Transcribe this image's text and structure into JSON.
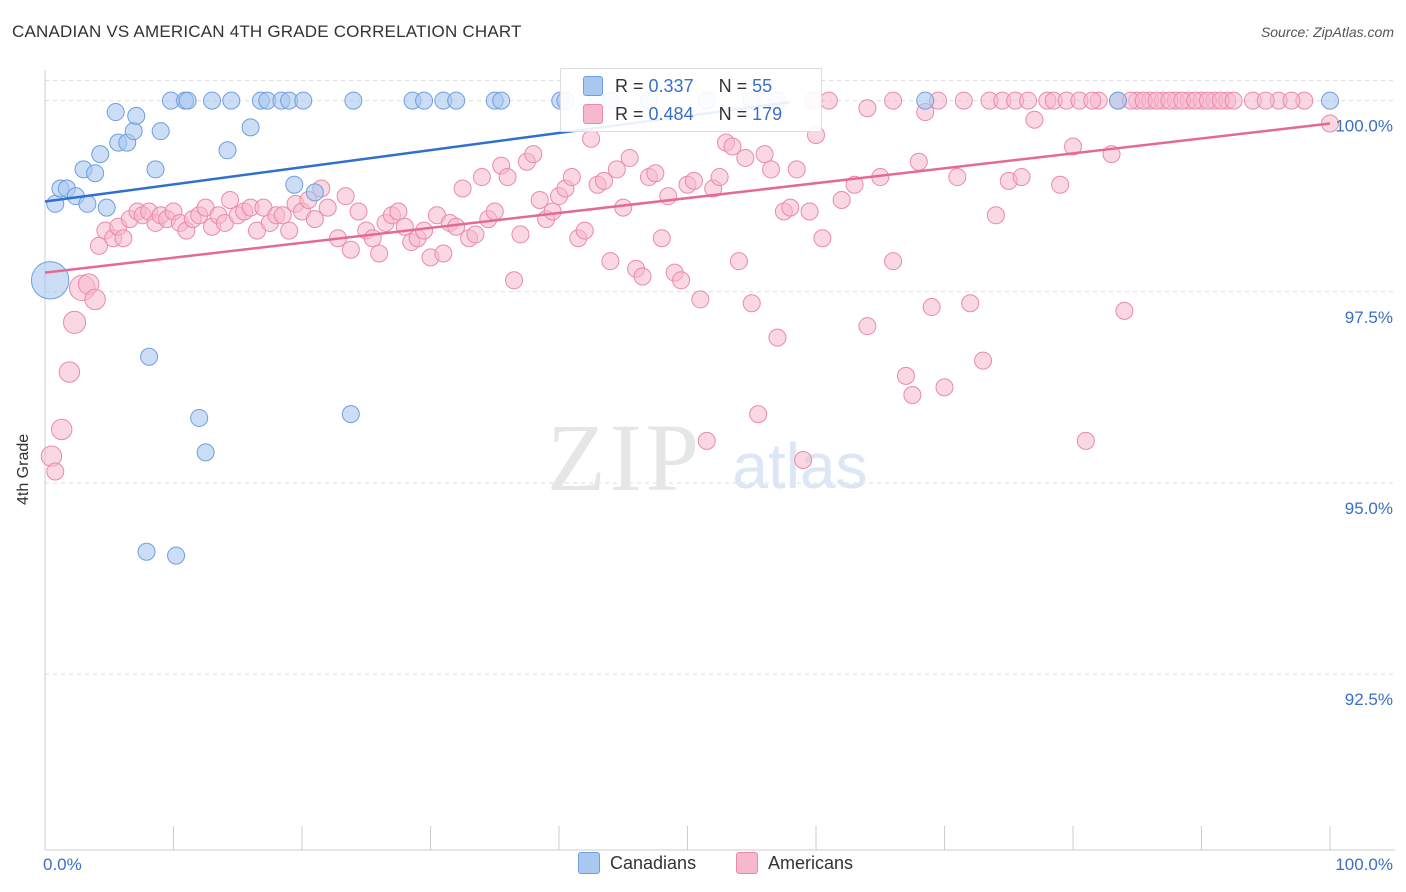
{
  "title": "CANADIAN VS AMERICAN 4TH GRADE CORRELATION CHART",
  "source": "Source: ZipAtlas.com",
  "watermark": {
    "zip": "ZIP",
    "atlas": "atlas"
  },
  "colors": {
    "canadians_fill": "#a9c8f0",
    "canadians_stroke": "#6f9ee0",
    "canadians_line": "#2f6fd0",
    "americans_fill": "#f6b8cc",
    "americans_stroke": "#ea8aa8",
    "americans_line": "#e36a95",
    "tick_label": "#3a6fc6",
    "grid": "#dddddd"
  },
  "stats": [
    {
      "series": "Canadians",
      "r_label": "R =",
      "r": "0.337",
      "n_label": "N =",
      "n": "55"
    },
    {
      "series": "Americans",
      "r_label": "R =",
      "r": "0.484",
      "n_label": "N =",
      "n": "179"
    }
  ],
  "chart_data": {
    "type": "scatter",
    "title": "CANADIAN VS AMERICAN 4TH GRADE CORRELATION CHART",
    "xlabel": "",
    "ylabel": "4th Grade",
    "xlim": [
      0,
      100
    ],
    "ylim": [
      90.2,
      100.4
    ],
    "x_tick_labels": [
      "0.0%",
      "100.0%"
    ],
    "y_ticks": [
      92.5,
      95.0,
      97.5,
      100.0
    ],
    "y_tick_labels": [
      "92.5%",
      "95.0%",
      "97.5%",
      "100.0%"
    ],
    "grid": true,
    "legend": "bottom-center",
    "series": [
      {
        "name": "Canadians",
        "trend": {
          "x": [
            0,
            58
          ],
          "y": [
            98.68,
            99.98
          ]
        },
        "points": [
          [
            0.4,
            97.65,
            2.2
          ],
          [
            0.8,
            98.65,
            1
          ],
          [
            1.2,
            98.85,
            1
          ],
          [
            1.7,
            98.85,
            1
          ],
          [
            2.4,
            98.75,
            1
          ],
          [
            3.0,
            99.1,
            1
          ],
          [
            3.3,
            98.65,
            1
          ],
          [
            3.9,
            99.05,
            1
          ],
          [
            4.3,
            99.3,
            1
          ],
          [
            4.8,
            98.6,
            1
          ],
          [
            5.5,
            99.85,
            1
          ],
          [
            5.7,
            99.45,
            1
          ],
          [
            6.4,
            99.45,
            1
          ],
          [
            6.9,
            99.6,
            1
          ],
          [
            7.1,
            99.8,
            1
          ],
          [
            8.1,
            96.65,
            1
          ],
          [
            7.9,
            94.1,
            1
          ],
          [
            8.6,
            99.1,
            1
          ],
          [
            9.0,
            99.6,
            1
          ],
          [
            9.8,
            100.0,
            1
          ],
          [
            10.2,
            94.05,
            1
          ],
          [
            10.9,
            100.0,
            1
          ],
          [
            11.1,
            100.0,
            1
          ],
          [
            12.0,
            95.85,
            1
          ],
          [
            12.5,
            95.4,
            1
          ],
          [
            13.0,
            100.0,
            1
          ],
          [
            14.2,
            99.35,
            1
          ],
          [
            14.5,
            100.0,
            1
          ],
          [
            16.0,
            99.65,
            1
          ],
          [
            16.8,
            100.0,
            1
          ],
          [
            17.3,
            100.0,
            1
          ],
          [
            18.4,
            100.0,
            1
          ],
          [
            19.0,
            100.0,
            1
          ],
          [
            19.4,
            98.9,
            1
          ],
          [
            20.1,
            100.0,
            1
          ],
          [
            21.0,
            98.8,
            1
          ],
          [
            23.8,
            95.9,
            1
          ],
          [
            24.0,
            100.0,
            1
          ],
          [
            28.6,
            100.0,
            1
          ],
          [
            29.5,
            100.0,
            1
          ],
          [
            31.0,
            100.0,
            1
          ],
          [
            32.0,
            100.0,
            1
          ],
          [
            35.0,
            100.0,
            1
          ],
          [
            35.5,
            100.0,
            1
          ],
          [
            40.1,
            100.0,
            1
          ],
          [
            40.5,
            100.0,
            1
          ],
          [
            43.0,
            100.0,
            1
          ],
          [
            44.0,
            100.0,
            1
          ],
          [
            47.0,
            100.0,
            1
          ],
          [
            51.5,
            100.0,
            1
          ],
          [
            55.0,
            100.0,
            1
          ],
          [
            57.0,
            100.0,
            1
          ],
          [
            68.5,
            100.0,
            1
          ],
          [
            83.5,
            100.0,
            1
          ],
          [
            100.0,
            100.0,
            1
          ]
        ]
      },
      {
        "name": "Americans",
        "trend": {
          "x": [
            0,
            100
          ],
          "y": [
            97.75,
            99.7
          ]
        },
        "points": [
          [
            0.5,
            95.35,
            1.2
          ],
          [
            0.8,
            95.15,
            1
          ],
          [
            1.3,
            95.7,
            1.2
          ],
          [
            1.9,
            96.45,
            1.2
          ],
          [
            2.3,
            97.1,
            1.3
          ],
          [
            2.9,
            97.55,
            1.5
          ],
          [
            3.4,
            97.6,
            1.2
          ],
          [
            3.9,
            97.4,
            1.2
          ],
          [
            4.2,
            98.1,
            1
          ],
          [
            4.7,
            98.3,
            1
          ],
          [
            5.3,
            98.2,
            1
          ],
          [
            5.7,
            98.35,
            1
          ],
          [
            6.1,
            98.2,
            1
          ],
          [
            6.6,
            98.45,
            1
          ],
          [
            7.2,
            98.55,
            1
          ],
          [
            7.6,
            98.5,
            1
          ],
          [
            8.1,
            98.55,
            1
          ],
          [
            8.6,
            98.4,
            1
          ],
          [
            9.0,
            98.5,
            1
          ],
          [
            9.5,
            98.45,
            1
          ],
          [
            10.0,
            98.55,
            1
          ],
          [
            10.5,
            98.4,
            1
          ],
          [
            11.0,
            98.3,
            1
          ],
          [
            11.5,
            98.45,
            1
          ],
          [
            12.0,
            98.5,
            1
          ],
          [
            12.5,
            98.6,
            1
          ],
          [
            13.0,
            98.35,
            1
          ],
          [
            13.5,
            98.5,
            1
          ],
          [
            14.0,
            98.4,
            1
          ],
          [
            14.4,
            98.7,
            1
          ],
          [
            15.0,
            98.5,
            1
          ],
          [
            15.5,
            98.55,
            1
          ],
          [
            16.0,
            98.6,
            1
          ],
          [
            16.5,
            98.3,
            1
          ],
          [
            17.0,
            98.6,
            1
          ],
          [
            17.5,
            98.4,
            1
          ],
          [
            18.0,
            98.5,
            1
          ],
          [
            18.5,
            98.5,
            1
          ],
          [
            19.0,
            98.3,
            1
          ],
          [
            19.5,
            98.65,
            1
          ],
          [
            20.0,
            98.55,
            1
          ],
          [
            20.5,
            98.7,
            1
          ],
          [
            21.0,
            98.45,
            1
          ],
          [
            21.5,
            98.85,
            1
          ],
          [
            22.0,
            98.6,
            1
          ],
          [
            22.8,
            98.2,
            1
          ],
          [
            23.4,
            98.75,
            1
          ],
          [
            23.8,
            98.05,
            1
          ],
          [
            24.4,
            98.55,
            1
          ],
          [
            25.0,
            98.3,
            1
          ],
          [
            25.5,
            98.2,
            1
          ],
          [
            26.0,
            98.0,
            1
          ],
          [
            26.5,
            98.4,
            1
          ],
          [
            27.0,
            98.5,
            1
          ],
          [
            27.5,
            98.55,
            1
          ],
          [
            28.0,
            98.35,
            1
          ],
          [
            28.5,
            98.15,
            1
          ],
          [
            29.0,
            98.2,
            1
          ],
          [
            29.5,
            98.3,
            1
          ],
          [
            30.0,
            97.95,
            1
          ],
          [
            30.5,
            98.5,
            1
          ],
          [
            31.0,
            98.0,
            1
          ],
          [
            31.5,
            98.4,
            1
          ],
          [
            32.0,
            98.35,
            1
          ],
          [
            32.5,
            98.85,
            1
          ],
          [
            33.0,
            98.2,
            1
          ],
          [
            33.5,
            98.25,
            1
          ],
          [
            34.0,
            99.0,
            1
          ],
          [
            34.5,
            98.45,
            1
          ],
          [
            35.0,
            98.55,
            1
          ],
          [
            35.5,
            99.15,
            1
          ],
          [
            36.0,
            99.0,
            1
          ],
          [
            36.5,
            97.65,
            1
          ],
          [
            37.0,
            98.25,
            1
          ],
          [
            37.5,
            99.2,
            1
          ],
          [
            38.0,
            99.3,
            1
          ],
          [
            38.5,
            98.7,
            1
          ],
          [
            39.0,
            98.45,
            1
          ],
          [
            39.5,
            98.55,
            1
          ],
          [
            40.0,
            98.75,
            1
          ],
          [
            40.5,
            98.85,
            1
          ],
          [
            41.0,
            99.0,
            1
          ],
          [
            41.5,
            98.2,
            1
          ],
          [
            42.0,
            98.3,
            1
          ],
          [
            42.5,
            99.5,
            1
          ],
          [
            43.0,
            98.9,
            1
          ],
          [
            43.5,
            98.95,
            1
          ],
          [
            44.0,
            97.9,
            1
          ],
          [
            44.5,
            99.1,
            1
          ],
          [
            45.0,
            98.6,
            1
          ],
          [
            45.5,
            99.25,
            1
          ],
          [
            46.0,
            97.8,
            1
          ],
          [
            46.5,
            97.7,
            1
          ],
          [
            47.0,
            99.0,
            1
          ],
          [
            47.5,
            99.05,
            1
          ],
          [
            48.0,
            98.2,
            1
          ],
          [
            48.5,
            98.75,
            1
          ],
          [
            49.0,
            97.75,
            1
          ],
          [
            49.5,
            97.65,
            1
          ],
          [
            50.0,
            98.9,
            1
          ],
          [
            50.5,
            98.95,
            1
          ],
          [
            51.0,
            97.4,
            1
          ],
          [
            51.5,
            95.55,
            1
          ],
          [
            52.0,
            98.85,
            1
          ],
          [
            52.5,
            99.0,
            1
          ],
          [
            53.0,
            99.45,
            1
          ],
          [
            53.5,
            99.4,
            1
          ],
          [
            54.0,
            97.9,
            1
          ],
          [
            54.5,
            99.25,
            1
          ],
          [
            55.0,
            97.35,
            1
          ],
          [
            55.5,
            95.9,
            1
          ],
          [
            56.0,
            99.3,
            1
          ],
          [
            56.5,
            99.1,
            1
          ],
          [
            57.0,
            96.9,
            1
          ],
          [
            57.5,
            98.55,
            1
          ],
          [
            58.0,
            98.6,
            1
          ],
          [
            58.5,
            99.1,
            1
          ],
          [
            59.0,
            95.3,
            1
          ],
          [
            59.5,
            98.55,
            1
          ],
          [
            60.0,
            99.55,
            1
          ],
          [
            60.5,
            98.2,
            1
          ],
          [
            61.0,
            100.0,
            1
          ],
          [
            62.0,
            98.7,
            1
          ],
          [
            63.0,
            98.9,
            1
          ],
          [
            64.0,
            97.05,
            1
          ],
          [
            65.0,
            99.0,
            1
          ],
          [
            66.0,
            97.9,
            1
          ],
          [
            67.0,
            96.4,
            1
          ],
          [
            67.5,
            96.15,
            1
          ],
          [
            68.0,
            99.2,
            1
          ],
          [
            69.0,
            97.3,
            1
          ],
          [
            70.0,
            96.25,
            1
          ],
          [
            71.0,
            99.0,
            1
          ],
          [
            72.0,
            97.35,
            1
          ],
          [
            73.0,
            96.6,
            1
          ],
          [
            74.0,
            98.5,
            1
          ],
          [
            75.0,
            98.95,
            1
          ],
          [
            76.0,
            99.0,
            1
          ],
          [
            77.0,
            99.75,
            1
          ],
          [
            78.0,
            100.0,
            1
          ],
          [
            79.0,
            98.9,
            1
          ],
          [
            80.0,
            99.4,
            1
          ],
          [
            81.0,
            95.55,
            1
          ],
          [
            82.0,
            100.0,
            1
          ],
          [
            83.0,
            99.3,
            1
          ],
          [
            84.0,
            97.25,
            1
          ],
          [
            85.0,
            100.0,
            1
          ],
          [
            86.0,
            100.0,
            1
          ],
          [
            87.0,
            100.0,
            1
          ],
          [
            88.0,
            100.0,
            1
          ],
          [
            89.0,
            100.0,
            1
          ],
          [
            90.0,
            100.0,
            1
          ],
          [
            91.0,
            100.0,
            1
          ],
          [
            92.0,
            100.0,
            1
          ],
          [
            94.0,
            100.0,
            1
          ],
          [
            96.0,
            100.0,
            1
          ],
          [
            98.0,
            100.0,
            1
          ],
          [
            100.0,
            99.7,
            1
          ],
          [
            59.8,
            100.0,
            1
          ],
          [
            64.0,
            99.9,
            1
          ],
          [
            66.0,
            100.0,
            1
          ],
          [
            68.5,
            99.85,
            1
          ],
          [
            69.5,
            100.0,
            1
          ],
          [
            71.5,
            100.0,
            1
          ],
          [
            73.5,
            100.0,
            1
          ],
          [
            74.5,
            100.0,
            1
          ],
          [
            75.5,
            100.0,
            1
          ],
          [
            76.5,
            100.0,
            1
          ],
          [
            78.5,
            100.0,
            1
          ],
          [
            79.5,
            100.0,
            1
          ],
          [
            80.5,
            100.0,
            1
          ],
          [
            81.5,
            100.0,
            1
          ],
          [
            83.5,
            100.0,
            1
          ],
          [
            84.5,
            100.0,
            1
          ],
          [
            85.5,
            100.0,
            1
          ],
          [
            86.5,
            100.0,
            1
          ],
          [
            87.5,
            100.0,
            1
          ],
          [
            88.5,
            100.0,
            1
          ],
          [
            89.5,
            100.0,
            1
          ],
          [
            90.5,
            100.0,
            1
          ],
          [
            91.5,
            100.0,
            1
          ],
          [
            92.5,
            100.0,
            1
          ],
          [
            95.0,
            100.0,
            1
          ],
          [
            97.0,
            100.0,
            1
          ]
        ]
      }
    ]
  }
}
